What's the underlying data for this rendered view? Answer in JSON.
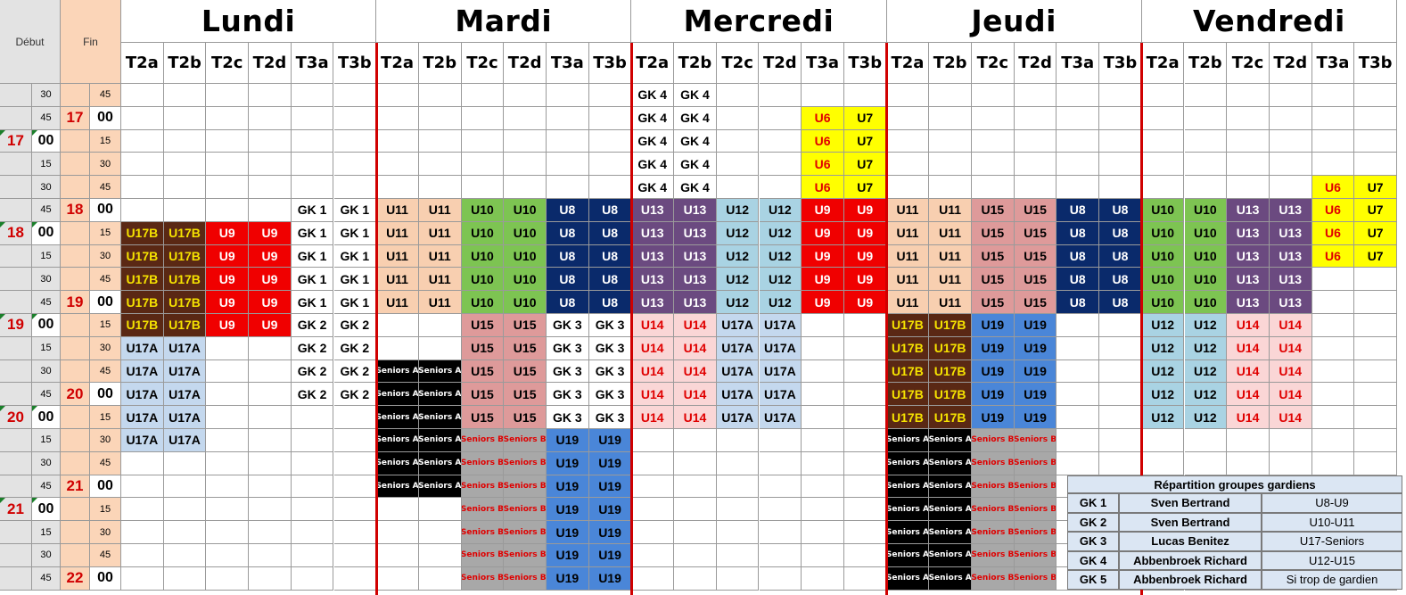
{
  "headers": {
    "debut": "Début",
    "fin": "Fin",
    "days": [
      "Lundi",
      "Mardi",
      "Mercredi",
      "Jeudi",
      "Vendredi"
    ],
    "fields": [
      "T2a",
      "T2b",
      "T2c",
      "T2d",
      "T3a",
      "T3b"
    ]
  },
  "time_rows": [
    {
      "dh": "",
      "dm": "30",
      "fh": "",
      "fm": "45"
    },
    {
      "dh": "",
      "dm": "45",
      "fh": "17",
      "fm": "00"
    },
    {
      "dh": "17",
      "dm": "00",
      "fh": "",
      "fm": "15"
    },
    {
      "dh": "",
      "dm": "15",
      "fh": "",
      "fm": "30"
    },
    {
      "dh": "",
      "dm": "30",
      "fh": "",
      "fm": "45"
    },
    {
      "dh": "",
      "dm": "45",
      "fh": "18",
      "fm": "00"
    },
    {
      "dh": "18",
      "dm": "00",
      "fh": "",
      "fm": "15"
    },
    {
      "dh": "",
      "dm": "15",
      "fh": "",
      "fm": "30"
    },
    {
      "dh": "",
      "dm": "30",
      "fh": "",
      "fm": "45"
    },
    {
      "dh": "",
      "dm": "45",
      "fh": "19",
      "fm": "00"
    },
    {
      "dh": "19",
      "dm": "00",
      "fh": "",
      "fm": "15"
    },
    {
      "dh": "",
      "dm": "15",
      "fh": "",
      "fm": "30"
    },
    {
      "dh": "",
      "dm": "30",
      "fh": "",
      "fm": "45"
    },
    {
      "dh": "",
      "dm": "45",
      "fh": "20",
      "fm": "00"
    },
    {
      "dh": "20",
      "dm": "00",
      "fh": "",
      "fm": "15"
    },
    {
      "dh": "",
      "dm": "15",
      "fh": "",
      "fm": "30"
    },
    {
      "dh": "",
      "dm": "30",
      "fh": "",
      "fm": "45"
    },
    {
      "dh": "",
      "dm": "45",
      "fh": "21",
      "fm": "00"
    },
    {
      "dh": "21",
      "dm": "00",
      "fh": "",
      "fm": "15"
    },
    {
      "dh": "",
      "dm": "15",
      "fh": "",
      "fm": "30"
    },
    {
      "dh": "",
      "dm": "30",
      "fh": "",
      "fm": "45"
    },
    {
      "dh": "",
      "dm": "45",
      "fh": "22",
      "fm": "00"
    }
  ],
  "styles": {
    "U17B": {
      "bg": "#5a2814",
      "fg": "#f5e200"
    },
    "U17A": {
      "bg": "#c4d8ee",
      "fg": "#000000"
    },
    "U9": {
      "bg": "#f00000",
      "fg": "#ffffff"
    },
    "GK": {
      "bg": "#ffffff",
      "fg": "#000000"
    },
    "U11": {
      "bg": "#f8cfb0",
      "fg": "#000000"
    },
    "U10": {
      "bg": "#7dc452",
      "fg": "#000000"
    },
    "U8": {
      "bg": "#0a2a6b",
      "fg": "#ffffff"
    },
    "U15": {
      "bg": "#de9a9a",
      "fg": "#000000"
    },
    "U13": {
      "bg": "#6b4a80",
      "fg": "#ffffff"
    },
    "U12": {
      "bg": "#a9d3e3",
      "fg": "#000000"
    },
    "U6": {
      "bg": "#ffff00",
      "fg": "#e00000"
    },
    "U7": {
      "bg": "#ffff00",
      "fg": "#000000"
    },
    "U14": {
      "bg": "#fad6d6",
      "fg": "#e00000"
    },
    "U19": {
      "bg": "#4a86d8",
      "fg": "#000000"
    },
    "SA": {
      "bg": "#000000",
      "fg": "#ffffff",
      "small": true
    },
    "SB": {
      "bg": "#a8a8a8",
      "fg": "#e00000",
      "small": true
    }
  },
  "blocks": [
    {
      "c": 2,
      "r": 0,
      "n": 5,
      "t": "GK 4",
      "s": "GK"
    },
    {
      "c": 2,
      "r": 0,
      "n": 5,
      "t": "GK 4",
      "s": "GK",
      "dc": 13
    },
    {
      "c": 0,
      "r": 5,
      "n": 5,
      "t": "GK 1",
      "s": "GK",
      "dc": 4
    },
    {
      "c": 0,
      "r": 5,
      "n": 5,
      "t": "GK 1",
      "s": "GK",
      "dc": 5
    },
    {
      "c": 0,
      "r": 6,
      "n": 5,
      "t": "U17B",
      "s": "U17B",
      "dc": 0
    },
    {
      "c": 0,
      "r": 6,
      "n": 5,
      "t": "U17B",
      "s": "U17B",
      "dc": 1
    },
    {
      "c": 0,
      "r": 6,
      "n": 5,
      "t": "U9",
      "s": "U9",
      "dc": 2
    },
    {
      "c": 0,
      "r": 6,
      "n": 5,
      "t": "U9",
      "s": "U9",
      "dc": 3
    },
    {
      "c": 0,
      "r": 10,
      "n": 4,
      "t": "GK 2",
      "s": "GK",
      "dc": 4
    },
    {
      "c": 0,
      "r": 10,
      "n": 4,
      "t": "GK 2",
      "s": "GK",
      "dc": 5
    },
    {
      "c": 0,
      "r": 11,
      "n": 5,
      "t": "U17A",
      "s": "U17A",
      "dc": 0
    },
    {
      "c": 0,
      "r": 11,
      "n": 5,
      "t": "U17A",
      "s": "U17A",
      "dc": 1
    },
    {
      "c": 0,
      "r": 5,
      "n": 5,
      "t": "U11",
      "s": "U11",
      "dc": 6
    },
    {
      "c": 0,
      "r": 5,
      "n": 5,
      "t": "U11",
      "s": "U11",
      "dc": 7
    },
    {
      "c": 0,
      "r": 5,
      "n": 5,
      "t": "U10",
      "s": "U10",
      "dc": 8
    },
    {
      "c": 0,
      "r": 5,
      "n": 5,
      "t": "U10",
      "s": "U10",
      "dc": 9
    },
    {
      "c": 0,
      "r": 5,
      "n": 5,
      "t": "U8",
      "s": "U8",
      "dc": 10
    },
    {
      "c": 0,
      "r": 5,
      "n": 5,
      "t": "U8",
      "s": "U8",
      "dc": 11
    },
    {
      "c": 0,
      "r": 10,
      "n": 5,
      "t": "U15",
      "s": "U15",
      "dc": 8
    },
    {
      "c": 0,
      "r": 10,
      "n": 5,
      "t": "U15",
      "s": "U15",
      "dc": 9
    },
    {
      "c": 0,
      "r": 10,
      "n": 5,
      "t": "GK 3",
      "s": "GK",
      "dc": 10
    },
    {
      "c": 0,
      "r": 10,
      "n": 5,
      "t": "GK 3",
      "s": "GK",
      "dc": 11
    },
    {
      "c": 0,
      "r": 12,
      "n": 6,
      "t": "Seniors A",
      "s": "SA",
      "dc": 6
    },
    {
      "c": 0,
      "r": 12,
      "n": 6,
      "t": "Seniors A",
      "s": "SA",
      "dc": 7
    },
    {
      "c": 0,
      "r": 15,
      "n": 7,
      "t": "Seniors B",
      "s": "SB",
      "dc": 8
    },
    {
      "c": 0,
      "r": 15,
      "n": 7,
      "t": "Seniors B",
      "s": "SB",
      "dc": 9
    },
    {
      "c": 0,
      "r": 15,
      "n": 7,
      "t": "U19",
      "s": "U19",
      "dc": 10
    },
    {
      "c": 0,
      "r": 15,
      "n": 7,
      "t": "U19",
      "s": "U19",
      "dc": 11
    },
    {
      "c": 0,
      "r": 1,
      "n": 4,
      "t": "U6",
      "s": "U6",
      "dc": 16
    },
    {
      "c": 0,
      "r": 1,
      "n": 4,
      "t": "U7",
      "s": "U7",
      "dc": 17
    },
    {
      "c": 0,
      "r": 5,
      "n": 5,
      "t": "U13",
      "s": "U13",
      "dc": 12
    },
    {
      "c": 0,
      "r": 5,
      "n": 5,
      "t": "U13",
      "s": "U13",
      "dc": 13
    },
    {
      "c": 0,
      "r": 5,
      "n": 5,
      "t": "U12",
      "s": "U12",
      "dc": 14
    },
    {
      "c": 0,
      "r": 5,
      "n": 5,
      "t": "U12",
      "s": "U12",
      "dc": 15
    },
    {
      "c": 0,
      "r": 5,
      "n": 5,
      "t": "U9",
      "s": "U9",
      "dc": 16
    },
    {
      "c": 0,
      "r": 5,
      "n": 5,
      "t": "U9",
      "s": "U9",
      "dc": 17
    },
    {
      "c": 0,
      "r": 10,
      "n": 5,
      "t": "U14",
      "s": "U14",
      "dc": 12
    },
    {
      "c": 0,
      "r": 10,
      "n": 5,
      "t": "U14",
      "s": "U14",
      "dc": 13
    },
    {
      "c": 0,
      "r": 10,
      "n": 5,
      "t": "U17A",
      "s": "U17A",
      "dc": 14
    },
    {
      "c": 0,
      "r": 10,
      "n": 5,
      "t": "U17A",
      "s": "U17A",
      "dc": 15
    },
    {
      "c": 0,
      "r": 5,
      "n": 5,
      "t": "U11",
      "s": "U11",
      "dc": 18
    },
    {
      "c": 0,
      "r": 5,
      "n": 5,
      "t": "U11",
      "s": "U11",
      "dc": 19
    },
    {
      "c": 0,
      "r": 5,
      "n": 5,
      "t": "U15",
      "s": "U15",
      "dc": 20
    },
    {
      "c": 0,
      "r": 5,
      "n": 5,
      "t": "U15",
      "s": "U15",
      "dc": 21
    },
    {
      "c": 0,
      "r": 5,
      "n": 5,
      "t": "U8",
      "s": "U8",
      "dc": 22
    },
    {
      "c": 0,
      "r": 5,
      "n": 5,
      "t": "U8",
      "s": "U8",
      "dc": 23
    },
    {
      "c": 0,
      "r": 10,
      "n": 5,
      "t": "U17B",
      "s": "U17B",
      "dc": 18
    },
    {
      "c": 0,
      "r": 10,
      "n": 5,
      "t": "U17B",
      "s": "U17B",
      "dc": 19
    },
    {
      "c": 0,
      "r": 10,
      "n": 5,
      "t": "U19",
      "s": "U19",
      "dc": 20
    },
    {
      "c": 0,
      "r": 10,
      "n": 5,
      "t": "U19",
      "s": "U19",
      "dc": 21
    },
    {
      "c": 0,
      "r": 15,
      "n": 7,
      "t": "Seniors A",
      "s": "SA",
      "dc": 18
    },
    {
      "c": 0,
      "r": 15,
      "n": 7,
      "t": "Seniors A",
      "s": "SA",
      "dc": 19
    },
    {
      "c": 0,
      "r": 15,
      "n": 7,
      "t": "Seniors B",
      "s": "SB",
      "dc": 20
    },
    {
      "c": 0,
      "r": 15,
      "n": 7,
      "t": "Seniors B",
      "s": "SB",
      "dc": 21
    },
    {
      "c": 0,
      "r": 5,
      "n": 5,
      "t": "U10",
      "s": "U10",
      "dc": 24
    },
    {
      "c": 0,
      "r": 5,
      "n": 5,
      "t": "U10",
      "s": "U10",
      "dc": 25
    },
    {
      "c": 0,
      "r": 5,
      "n": 5,
      "t": "U13",
      "s": "U13",
      "dc": 26
    },
    {
      "c": 0,
      "r": 5,
      "n": 5,
      "t": "U13",
      "s": "U13",
      "dc": 27
    },
    {
      "c": 0,
      "r": 4,
      "n": 4,
      "t": "U6",
      "s": "U6",
      "dc": 28
    },
    {
      "c": 0,
      "r": 4,
      "n": 4,
      "t": "U7",
      "s": "U7",
      "dc": 29
    },
    {
      "c": 0,
      "r": 10,
      "n": 5,
      "t": "U12",
      "s": "U12",
      "dc": 24
    },
    {
      "c": 0,
      "r": 10,
      "n": 5,
      "t": "U12",
      "s": "U12",
      "dc": 25
    },
    {
      "c": 0,
      "r": 10,
      "n": 5,
      "t": "U14",
      "s": "U14",
      "dc": 26
    },
    {
      "c": 0,
      "r": 10,
      "n": 5,
      "t": "U14",
      "s": "U14",
      "dc": 27
    }
  ],
  "legend": {
    "title": "Répartition groupes gardiens",
    "rows": [
      {
        "gk": "GK 1",
        "coach": "Sven Bertrand",
        "groups": "U8-U9"
      },
      {
        "gk": "GK 2",
        "coach": "Sven Bertrand",
        "groups": "U10-U11"
      },
      {
        "gk": "GK 3",
        "coach": "Lucas Benitez",
        "groups": "U17-Seniors"
      },
      {
        "gk": "GK 4",
        "coach": "Abbenbroek Richard",
        "groups": "U12-U15"
      },
      {
        "gk": "GK 5",
        "coach": "Abbenbroek Richard",
        "groups": "Si trop de gardien"
      }
    ]
  }
}
